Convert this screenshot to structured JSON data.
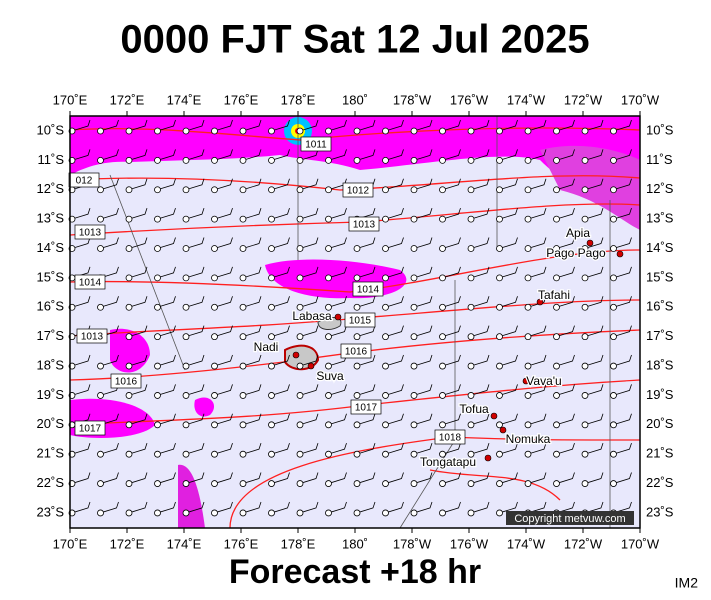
{
  "header": {
    "title": "0000 FJT Sat 12 Jul 2025"
  },
  "footer": {
    "text": "Forecast +18 hr",
    "corner": "IM2"
  },
  "copyright": "Copyright metvuw.com",
  "lon_labels": [
    "170˚E",
    "172˚E",
    "174˚E",
    "176˚E",
    "178˚E",
    "180˚",
    "178˚W",
    "176˚W",
    "174˚W",
    "172˚W",
    "170˚W"
  ],
  "lat_labels": [
    "10˚S",
    "11˚S",
    "12˚S",
    "13˚S",
    "14˚S",
    "15˚S",
    "16˚S",
    "17˚S",
    "18˚S",
    "19˚S",
    "20˚S",
    "21˚S",
    "22˚S",
    "23˚S"
  ],
  "isobar_labels": [
    "1011",
    "012",
    "1012",
    "1013",
    "1013",
    "1014",
    "1014",
    "1015",
    "1013",
    "1016",
    "1016",
    "1017",
    "1017",
    "1018"
  ],
  "places": [
    "Labasa",
    "Nadi",
    "Suva",
    "Apia",
    "Pago Pago",
    "Tafahi",
    "Vava'u",
    "Tofua",
    "Nomuka",
    "Tongatapu"
  ]
}
